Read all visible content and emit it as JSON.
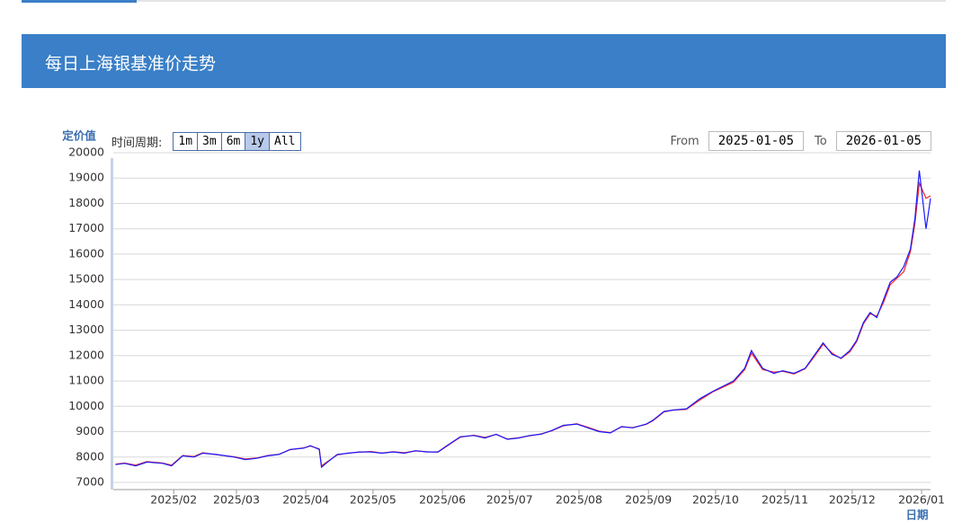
{
  "header": {
    "title": "每日上海银基准价走势"
  },
  "controls": {
    "period_label": "时间周期:",
    "buttons": [
      "1m",
      "3m",
      "6m",
      "1y",
      "All"
    ],
    "selected": "1y",
    "from_label": "From",
    "from": "2025-01-05",
    "to_label": "To",
    "to": "2026-01-05"
  },
  "chart_data": {
    "type": "line",
    "y_label": "定价值",
    "x_label": "日期",
    "x": [
      "2025-01-06",
      "2025-01-10",
      "2025-01-15",
      "2025-01-20",
      "2025-01-27",
      "2025-01-31",
      "2025-02-05",
      "2025-02-10",
      "2025-02-14",
      "2025-02-20",
      "2025-02-28",
      "2025-03-05",
      "2025-03-10",
      "2025-03-15",
      "2025-03-20",
      "2025-03-25",
      "2025-03-31",
      "2025-04-03",
      "2025-04-07",
      "2025-04-08",
      "2025-04-10",
      "2025-04-15",
      "2025-04-20",
      "2025-04-25",
      "2025-04-30",
      "2025-05-05",
      "2025-05-10",
      "2025-05-15",
      "2025-05-20",
      "2025-05-25",
      "2025-05-30",
      "2025-06-03",
      "2025-06-09",
      "2025-06-15",
      "2025-06-20",
      "2025-06-25",
      "2025-06-30",
      "2025-07-05",
      "2025-07-10",
      "2025-07-15",
      "2025-07-20",
      "2025-07-25",
      "2025-07-31",
      "2025-08-05",
      "2025-08-10",
      "2025-08-15",
      "2025-08-20",
      "2025-08-25",
      "2025-08-31",
      "2025-09-03",
      "2025-09-08",
      "2025-09-12",
      "2025-09-18",
      "2025-09-24",
      "2025-09-30",
      "2025-10-09",
      "2025-10-14",
      "2025-10-17",
      "2025-10-22",
      "2025-10-27",
      "2025-10-31",
      "2025-11-05",
      "2025-11-10",
      "2025-11-14",
      "2025-11-18",
      "2025-11-22",
      "2025-11-26",
      "2025-11-30",
      "2025-12-03",
      "2025-12-06",
      "2025-12-09",
      "2025-12-12",
      "2025-12-15",
      "2025-12-18",
      "2025-12-21",
      "2025-12-24",
      "2025-12-27",
      "2025-12-29",
      "2025-12-31",
      "2026-01-03",
      "2026-01-05"
    ],
    "series": [
      {
        "color": "#ff2020",
        "values": [
          7720,
          7760,
          7680,
          7820,
          7760,
          7680,
          8060,
          8020,
          8170,
          8090,
          8010,
          7920,
          7960,
          8060,
          8110,
          8290,
          8360,
          8430,
          8320,
          7650,
          7780,
          8080,
          8160,
          8190,
          8220,
          8160,
          8210,
          8170,
          8240,
          8210,
          8190,
          8430,
          8780,
          8860,
          8770,
          8890,
          8710,
          8760,
          8840,
          8910,
          9040,
          9230,
          9310,
          9170,
          9020,
          8960,
          9190,
          9160,
          9290,
          9430,
          9780,
          9850,
          9880,
          10250,
          10580,
          10950,
          11450,
          12100,
          11450,
          11350,
          11380,
          11280,
          11480,
          11950,
          12450,
          12100,
          11880,
          12150,
          12550,
          13250,
          13650,
          13550,
          14100,
          14800,
          15050,
          15300,
          16100,
          17200,
          18800,
          18200,
          18300
        ]
      },
      {
        "color": "#1a1aff",
        "values": [
          7700,
          7750,
          7650,
          7800,
          7750,
          7650,
          8050,
          8000,
          8150,
          8100,
          8000,
          7900,
          7950,
          8050,
          8100,
          8300,
          8350,
          8450,
          8300,
          7600,
          7750,
          8100,
          8150,
          8200,
          8200,
          8150,
          8200,
          8150,
          8250,
          8200,
          8200,
          8450,
          8800,
          8850,
          8750,
          8900,
          8700,
          8750,
          8850,
          8900,
          9050,
          9250,
          9300,
          9150,
          9000,
          8950,
          9200,
          9150,
          9300,
          9450,
          9800,
          9850,
          9900,
          10300,
          10600,
          11000,
          11500,
          12200,
          11500,
          11300,
          11400,
          11300,
          11500,
          12000,
          12500,
          12050,
          11900,
          12200,
          12600,
          13300,
          13700,
          13500,
          14200,
          14900,
          15100,
          15500,
          16200,
          17400,
          19300,
          17000,
          18200
        ]
      }
    ],
    "xlim": [
      "2025-01-05",
      "2026-01-05"
    ],
    "xticks": [
      {
        "value": "2025-02-01",
        "label": "2025/02"
      },
      {
        "value": "2025-03-01",
        "label": "2025/03"
      },
      {
        "value": "2025-04-01",
        "label": "2025/04"
      },
      {
        "value": "2025-05-01",
        "label": "2025/05"
      },
      {
        "value": "2025-06-01",
        "label": "2025/06"
      },
      {
        "value": "2025-07-01",
        "label": "2025/07"
      },
      {
        "value": "2025-08-01",
        "label": "2025/08"
      },
      {
        "value": "2025-09-01",
        "label": "2025/09"
      },
      {
        "value": "2025-10-01",
        "label": "2025/10"
      },
      {
        "value": "2025-11-01",
        "label": "2025/11"
      },
      {
        "value": "2025-12-01",
        "label": "2025/12"
      },
      {
        "value": "2026-01-01",
        "label": "2026/01"
      }
    ],
    "ylim": [
      7000,
      20000
    ],
    "yticks": [
      7000,
      8000,
      9000,
      10000,
      11000,
      12000,
      13000,
      14000,
      15000,
      16000,
      17000,
      18000,
      19000,
      20000
    ],
    "grid": true
  }
}
